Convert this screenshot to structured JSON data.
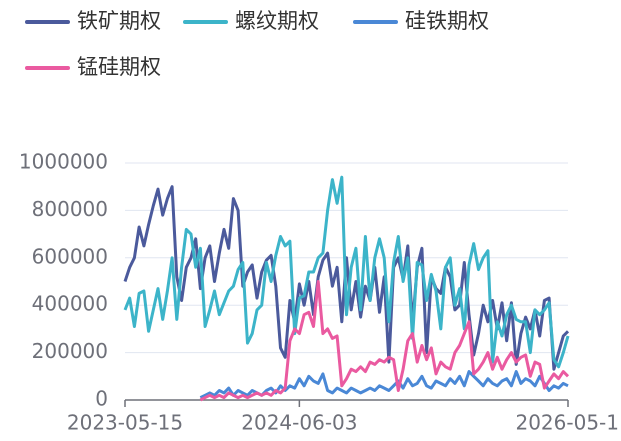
{
  "chart_data": {
    "type": "line",
    "categories": [
      "2023-05-15",
      null,
      null,
      null,
      null,
      null,
      null,
      null,
      null,
      null,
      null,
      null,
      null,
      null,
      null,
      null,
      null,
      null,
      null,
      null,
      null,
      null,
      null,
      null,
      null,
      null,
      null,
      null,
      null,
      null,
      null,
      null,
      null,
      null,
      null,
      null,
      null,
      "2024-06-03",
      null,
      null,
      null,
      null,
      null,
      null,
      null,
      null,
      null,
      null,
      null,
      null,
      null,
      null,
      null,
      null,
      null,
      null,
      null,
      null,
      null,
      null,
      null,
      null,
      null,
      null,
      null,
      null,
      null,
      null,
      null,
      null,
      null,
      null,
      null,
      null,
      null,
      null,
      null,
      null,
      null,
      null,
      null,
      null,
      null,
      null,
      null,
      null,
      null,
      null,
      null,
      null,
      null,
      null,
      null,
      null,
      "2026-05-1"
    ],
    "series": [
      {
        "name": "铁矿期权",
        "color": "#4b5a9c",
        "values": [
          500000,
          560000,
          600000,
          730000,
          650000,
          740000,
          820000,
          890000,
          780000,
          850000,
          900000,
          520000,
          420000,
          560000,
          600000,
          680000,
          470000,
          600000,
          650000,
          500000,
          620000,
          720000,
          640000,
          850000,
          800000,
          480000,
          540000,
          570000,
          430000,
          540000,
          590000,
          610000,
          480000,
          220000,
          180000,
          420000,
          330000,
          490000,
          400000,
          500000,
          360000,
          520000,
          590000,
          620000,
          480000,
          560000,
          330000,
          600000,
          380000,
          500000,
          350000,
          480000,
          420000,
          560000,
          370000,
          520000,
          160000,
          560000,
          600000,
          510000,
          650000,
          320000,
          560000,
          640000,
          200000,
          520000,
          470000,
          450000,
          560000,
          520000,
          380000,
          400000,
          580000,
          360000,
          190000,
          280000,
          400000,
          330000,
          420000,
          300000,
          410000,
          250000,
          410000,
          150000,
          280000,
          350000,
          300000,
          380000,
          270000,
          420000,
          430000,
          130000,
          200000,
          270000,
          290000
        ]
      },
      {
        "name": "螺纹期权",
        "color": "#3cb4c9",
        "values": [
          380000,
          430000,
          310000,
          450000,
          460000,
          290000,
          380000,
          470000,
          340000,
          460000,
          600000,
          340000,
          560000,
          720000,
          700000,
          560000,
          640000,
          310000,
          380000,
          460000,
          360000,
          410000,
          460000,
          480000,
          550000,
          580000,
          240000,
          280000,
          380000,
          400000,
          580000,
          500000,
          610000,
          690000,
          650000,
          670000,
          280000,
          430000,
          440000,
          540000,
          540000,
          600000,
          620000,
          800000,
          930000,
          830000,
          940000,
          360000,
          560000,
          640000,
          380000,
          690000,
          420000,
          600000,
          680000,
          600000,
          330000,
          580000,
          690000,
          500000,
          600000,
          260000,
          580000,
          570000,
          420000,
          530000,
          460000,
          300000,
          560000,
          600000,
          400000,
          470000,
          300000,
          570000,
          660000,
          550000,
          600000,
          630000,
          160000,
          330000,
          270000,
          360000,
          400000,
          340000,
          330000,
          330000,
          200000,
          380000,
          360000,
          380000,
          410000,
          170000,
          140000,
          200000,
          270000
        ]
      },
      {
        "name": "硅铁期权",
        "color": "#4a88d6",
        "values": [
          null,
          null,
          null,
          null,
          null,
          null,
          null,
          null,
          null,
          null,
          null,
          null,
          null,
          null,
          null,
          null,
          10000,
          20000,
          30000,
          20000,
          40000,
          30000,
          50000,
          20000,
          40000,
          30000,
          20000,
          40000,
          30000,
          20000,
          40000,
          50000,
          30000,
          60000,
          40000,
          60000,
          50000,
          90000,
          60000,
          100000,
          80000,
          70000,
          110000,
          40000,
          30000,
          50000,
          40000,
          30000,
          50000,
          40000,
          30000,
          40000,
          50000,
          40000,
          60000,
          50000,
          40000,
          60000,
          80000,
          50000,
          90000,
          60000,
          70000,
          100000,
          60000,
          50000,
          80000,
          70000,
          60000,
          90000,
          70000,
          100000,
          60000,
          120000,
          100000,
          80000,
          60000,
          90000,
          70000,
          60000,
          80000,
          90000,
          60000,
          120000,
          70000,
          90000,
          80000,
          60000,
          100000,
          70000,
          40000,
          60000,
          50000,
          70000,
          60000
        ]
      },
      {
        "name": "锰硅期权",
        "color": "#ea5aa0",
        "values": [
          null,
          null,
          null,
          null,
          null,
          null,
          null,
          null,
          null,
          null,
          null,
          null,
          null,
          null,
          null,
          null,
          0,
          10000,
          20000,
          10000,
          20000,
          10000,
          30000,
          20000,
          10000,
          20000,
          10000,
          20000,
          30000,
          20000,
          30000,
          20000,
          40000,
          30000,
          50000,
          250000,
          300000,
          280000,
          360000,
          370000,
          310000,
          500000,
          280000,
          300000,
          260000,
          270000,
          60000,
          90000,
          130000,
          120000,
          140000,
          120000,
          160000,
          150000,
          170000,
          160000,
          180000,
          170000,
          40000,
          130000,
          250000,
          280000,
          160000,
          230000,
          170000,
          220000,
          110000,
          160000,
          140000,
          130000,
          200000,
          230000,
          280000,
          330000,
          110000,
          130000,
          160000,
          200000,
          130000,
          180000,
          130000,
          170000,
          200000,
          160000,
          180000,
          190000,
          100000,
          160000,
          150000,
          50000,
          80000,
          110000,
          90000,
          120000,
          100000
        ]
      }
    ],
    "ylim": [
      0,
      1000000
    ],
    "yticks": [
      0,
      200000,
      400000,
      600000,
      800000,
      1000000
    ],
    "grid": true
  }
}
